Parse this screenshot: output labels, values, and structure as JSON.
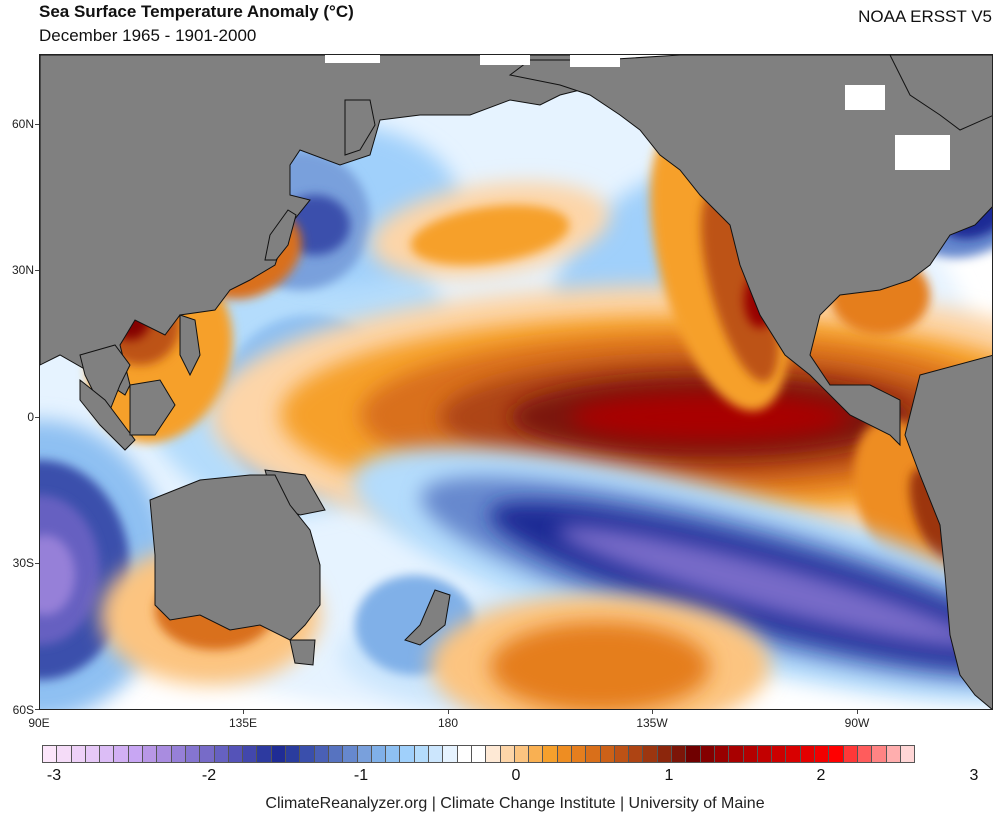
{
  "header": {
    "title": "Sea Surface Temperature Anomaly (°C)",
    "subtitle": "December 1965 - 1901-2000",
    "source": "NOAA ERSST V5"
  },
  "map": {
    "region": "Pacific Ocean",
    "projection": "equirectangular",
    "lon_range": [
      "90E",
      "70W"
    ],
    "lat_range": [
      "60S",
      "73N"
    ],
    "land_color": "#808080",
    "lat_labels": [
      "60N",
      "30N",
      "0",
      "30S",
      "60S"
    ],
    "lon_labels": [
      "90E",
      "135E",
      "180",
      "135W",
      "90W"
    ],
    "features": [
      {
        "name": "El Nino warm tongue",
        "location": "equatorial central-eastern Pacific",
        "anomaly_max": 1.9
      },
      {
        "name": "South Pacific cold band",
        "location": "20S-45S, 170W-80W",
        "anomaly_min": -2.0
      },
      {
        "name": "Indian Ocean cold core",
        "location": "30S, 90E",
        "anomaly_min": -2.1
      },
      {
        "name": "North Pacific warm patch",
        "location": "40N, 170W",
        "anomaly_max": 0.6
      },
      {
        "name": "Kuroshio cold spot",
        "location": "38N, 150E",
        "anomaly_min": -1.2
      },
      {
        "name": "Baja California warm coast",
        "location": "25N, 112W",
        "anomaly_max": 1.7
      },
      {
        "name": "South China Sea warm",
        "location": "20N, 110E",
        "anomaly_max": 1.6
      },
      {
        "name": "US East Coast cold",
        "location": "38N, 70W",
        "anomaly_min": -1.3
      },
      {
        "name": "South Pacific warm",
        "location": "50S, 150W",
        "anomaly_max": 0.8
      },
      {
        "name": "South Australia warm",
        "location": "40S, 130E",
        "anomaly_max": 0.8
      }
    ]
  },
  "colorbar": {
    "min": -3,
    "max": 3,
    "tick_labels": [
      "-3",
      "-2",
      "-1",
      "0",
      "1",
      "2",
      "3"
    ],
    "colors": [
      "#fce6fb",
      "#f5dcf8",
      "#eed1f8",
      "#e6c8f7",
      "#dcbdf6",
      "#d2b0f4",
      "#c8a6f3",
      "#b897e6",
      "#a98ce0",
      "#9680d8",
      "#8575d0",
      "#776bc8",
      "#6661c1",
      "#5553b8",
      "#4247ac",
      "#2d3aa0",
      "#1f2c95",
      "#2a3c9e",
      "#3a4fac",
      "#4a60b6",
      "#5773c0",
      "#6688ce",
      "#79a0dc",
      "#80b0e8",
      "#8ec0f2",
      "#a0d0fb",
      "#b4dcfc",
      "#cce6fd",
      "#e6f3ff",
      "#ffffff",
      "#ffffff",
      "#fee9d5",
      "#fdd5a8",
      "#fcc480",
      "#f9b052",
      "#f6a02c",
      "#ee8d22",
      "#e57e1e",
      "#d96f1a",
      "#cc6118",
      "#bd5216",
      "#ae4413",
      "#9c3610",
      "#8c260c",
      "#7c1508",
      "#700000",
      "#840000",
      "#980000",
      "#a80000",
      "#b40000",
      "#c20000",
      "#cc0000",
      "#d80000",
      "#e40000",
      "#f20000",
      "#ff0000",
      "#ff3838",
      "#ff5c5c",
      "#ff8484",
      "#ffaeae",
      "#ffd6d6"
    ]
  },
  "footer": {
    "credit": "ClimateReanalyzer.org | Climate Change Institute | University of Maine"
  }
}
